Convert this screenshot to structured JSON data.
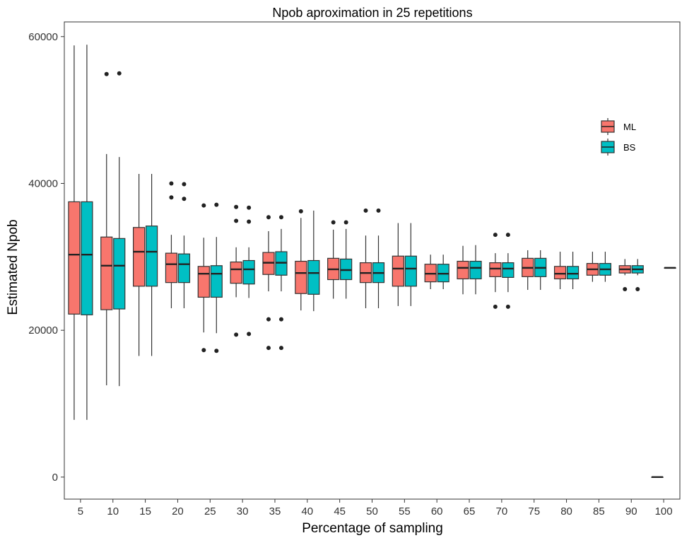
{
  "chart_data": {
    "type": "boxplot",
    "title": "Npob aproximation in  25  repetitions",
    "xlabel": "Percentage of sampling",
    "ylabel": "Estimated Npob",
    "categories": [
      "5",
      "10",
      "15",
      "20",
      "25",
      "30",
      "35",
      "40",
      "45",
      "50",
      "55",
      "60",
      "65",
      "70",
      "75",
      "80",
      "85",
      "90",
      "100"
    ],
    "yticks": [
      0,
      20000,
      40000,
      60000
    ],
    "ytick_labels": [
      "0",
      "20000",
      "40000",
      "60000"
    ],
    "ylim": [
      -3000,
      62000
    ],
    "grid": false,
    "legend_position": "right",
    "colors": {
      "ML": "#F8766D",
      "BS": "#00BFC4",
      "stroke": "#333333"
    },
    "series": [
      {
        "name": "ML",
        "boxes": [
          {
            "min": 7800,
            "q1": 22200,
            "median": 30300,
            "q3": 37500,
            "max": 58800,
            "outliers": []
          },
          {
            "min": 12500,
            "q1": 22800,
            "median": 28800,
            "q3": 32700,
            "max": 44000,
            "outliers": [
              54900
            ]
          },
          {
            "min": 16500,
            "q1": 26000,
            "median": 30700,
            "q3": 34000,
            "max": 41300,
            "outliers": []
          },
          {
            "min": 23000,
            "q1": 26500,
            "median": 29000,
            "q3": 30500,
            "max": 33000,
            "outliers": [
              38100,
              40000
            ]
          },
          {
            "min": 19700,
            "q1": 24500,
            "median": 27700,
            "q3": 28700,
            "max": 32600,
            "outliers": [
              17300,
              37000
            ]
          },
          {
            "min": 24500,
            "q1": 26400,
            "median": 28300,
            "q3": 29300,
            "max": 31300,
            "outliers": [
              19400,
              34900,
              36800
            ]
          },
          {
            "min": 25300,
            "q1": 27600,
            "median": 29200,
            "q3": 30600,
            "max": 33500,
            "outliers": [
              17600,
              21500,
              35400
            ]
          },
          {
            "min": 22700,
            "q1": 25000,
            "median": 27800,
            "q3": 29400,
            "max": 35300,
            "outliers": [
              36200
            ]
          },
          {
            "min": 24300,
            "q1": 26900,
            "median": 28300,
            "q3": 29800,
            "max": 33700,
            "outliers": [
              34700
            ]
          },
          {
            "min": 23000,
            "q1": 26500,
            "median": 27800,
            "q3": 29200,
            "max": 32900,
            "outliers": [
              36300
            ]
          },
          {
            "min": 23300,
            "q1": 26000,
            "median": 28400,
            "q3": 30100,
            "max": 34600,
            "outliers": []
          },
          {
            "min": 25600,
            "q1": 26600,
            "median": 27700,
            "q3": 29000,
            "max": 30300,
            "outliers": []
          },
          {
            "min": 24900,
            "q1": 27000,
            "median": 28500,
            "q3": 29400,
            "max": 31500,
            "outliers": []
          },
          {
            "min": 25200,
            "q1": 27300,
            "median": 28400,
            "q3": 29200,
            "max": 30500,
            "outliers": [
              23200,
              33000
            ]
          },
          {
            "min": 25500,
            "q1": 27300,
            "median": 28500,
            "q3": 29800,
            "max": 30900,
            "outliers": []
          },
          {
            "min": 25600,
            "q1": 27000,
            "median": 27700,
            "q3": 28700,
            "max": 30700,
            "outliers": []
          },
          {
            "min": 26600,
            "q1": 27500,
            "median": 28300,
            "q3": 29100,
            "max": 30700,
            "outliers": []
          },
          {
            "min": 27500,
            "q1": 27800,
            "median": 28300,
            "q3": 28800,
            "max": 29700,
            "outliers": [
              25600
            ]
          },
          {
            "min": 0,
            "q1": 0,
            "median": 0,
            "q3": 0,
            "max": 0,
            "outliers": []
          }
        ]
      },
      {
        "name": "BS",
        "boxes": [
          {
            "min": 7800,
            "q1": 22100,
            "median": 30300,
            "q3": 37500,
            "max": 58900,
            "outliers": []
          },
          {
            "min": 12400,
            "q1": 22900,
            "median": 28800,
            "q3": 32500,
            "max": 43600,
            "outliers": [
              55000
            ]
          },
          {
            "min": 16500,
            "q1": 26000,
            "median": 30700,
            "q3": 34200,
            "max": 41300,
            "outliers": []
          },
          {
            "min": 23000,
            "q1": 26500,
            "median": 29000,
            "q3": 30400,
            "max": 32900,
            "outliers": [
              37900,
              39900
            ]
          },
          {
            "min": 19600,
            "q1": 24500,
            "median": 27700,
            "q3": 28800,
            "max": 32700,
            "outliers": [
              17200,
              37100
            ]
          },
          {
            "min": 24400,
            "q1": 26300,
            "median": 28300,
            "q3": 29500,
            "max": 31300,
            "outliers": [
              19500,
              34800,
              36700
            ]
          },
          {
            "min": 25300,
            "q1": 27500,
            "median": 29200,
            "q3": 30700,
            "max": 33800,
            "outliers": [
              17600,
              21500,
              35400
            ]
          },
          {
            "min": 22600,
            "q1": 24900,
            "median": 27800,
            "q3": 29500,
            "max": 36300,
            "outliers": []
          },
          {
            "min": 24300,
            "q1": 26900,
            "median": 28200,
            "q3": 29700,
            "max": 33800,
            "outliers": [
              34700
            ]
          },
          {
            "min": 23000,
            "q1": 26500,
            "median": 27800,
            "q3": 29200,
            "max": 32900,
            "outliers": [
              36300
            ]
          },
          {
            "min": 23300,
            "q1": 26000,
            "median": 28400,
            "q3": 30100,
            "max": 34600,
            "outliers": []
          },
          {
            "min": 25600,
            "q1": 26600,
            "median": 27700,
            "q3": 29000,
            "max": 30300,
            "outliers": []
          },
          {
            "min": 24900,
            "q1": 27000,
            "median": 28500,
            "q3": 29400,
            "max": 31600,
            "outliers": []
          },
          {
            "min": 25200,
            "q1": 27200,
            "median": 28400,
            "q3": 29200,
            "max": 30500,
            "outliers": [
              23200,
              33000
            ]
          },
          {
            "min": 25500,
            "q1": 27300,
            "median": 28500,
            "q3": 29800,
            "max": 30900,
            "outliers": []
          },
          {
            "min": 25600,
            "q1": 27000,
            "median": 27700,
            "q3": 28700,
            "max": 30700,
            "outliers": []
          },
          {
            "min": 26600,
            "q1": 27500,
            "median": 28300,
            "q3": 29100,
            "max": 30700,
            "outliers": []
          },
          {
            "min": 27500,
            "q1": 27800,
            "median": 28300,
            "q3": 28800,
            "max": 29700,
            "outliers": [
              25600
            ]
          },
          {
            "min": 28500,
            "q1": 28500,
            "median": 28500,
            "q3": 28500,
            "max": 28500,
            "outliers": []
          }
        ]
      }
    ]
  }
}
